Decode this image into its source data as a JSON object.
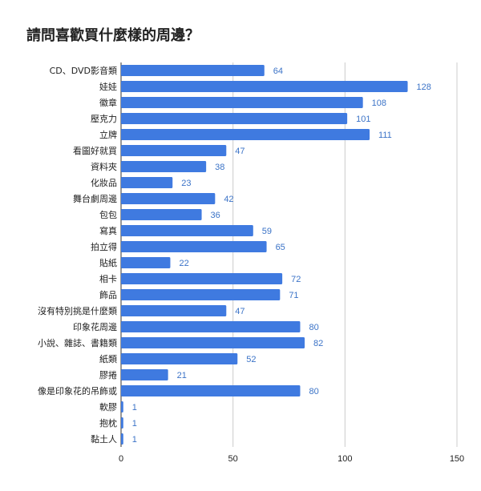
{
  "chart_data": {
    "type": "bar",
    "orientation": "horizontal",
    "title": "請問喜歡買什麼樣的周邊？",
    "categories": [
      "CD、DVD影音類",
      "娃娃",
      "徽章",
      "壓克力",
      "立牌",
      "看圖好就買",
      "資料夾",
      "化妝品",
      "舞台劇周邊",
      "包包",
      "寫真",
      "拍立得",
      "貼紙",
      "相卡",
      "飾品",
      "沒有特別挑是什麼類",
      "印象花周邊",
      "小說、雜誌、書籍類",
      "紙類",
      "膠捲",
      "像是印象花的吊飾或",
      "軟膠",
      "抱枕",
      "黏土人"
    ],
    "series": [
      {
        "values": [
          64,
          128,
          108,
          101,
          111,
          47,
          38,
          23,
          42,
          36,
          59,
          65,
          22,
          72,
          71,
          47,
          80,
          82,
          52,
          21,
          80,
          1,
          1,
          1
        ]
      }
    ],
    "xlim": [
      0,
      150
    ],
    "xticks": [
      "0",
      "50",
      "100",
      "150"
    ],
    "grid": true,
    "legend": "none",
    "colors": {
      "bar": "#3f7ae0",
      "value_label": "#3b73c7",
      "grid": "#cccccc"
    }
  }
}
